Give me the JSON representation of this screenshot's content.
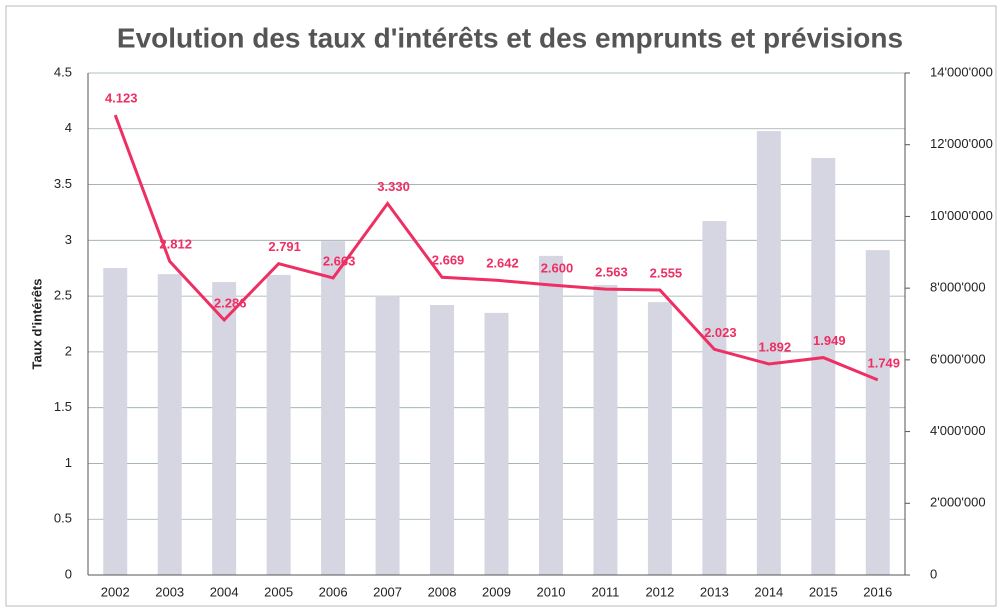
{
  "chart_data": {
    "type": "bar-line",
    "title": "Evolution des taux d'intérêts et des emprunts et prévisions",
    "y_label": "Taux d'intérêts",
    "categories": [
      "2002",
      "2003",
      "2004",
      "2005",
      "2006",
      "2007",
      "2008",
      "2009",
      "2010",
      "2011",
      "2012",
      "2013",
      "2014",
      "2015",
      "2016"
    ],
    "series": [
      {
        "type": "bar",
        "axis": "y2",
        "color": "#d6d5e2",
        "values": [
          8560000,
          8390000,
          8170000,
          8370000,
          9310000,
          7780000,
          7530000,
          7310000,
          8900000,
          8090000,
          7610000,
          9870000,
          12380000,
          11630000,
          9060000
        ]
      },
      {
        "type": "line",
        "axis": "y",
        "color": "#ee2f63",
        "values": [
          4.123,
          2.812,
          2.286,
          2.791,
          2.663,
          3.33,
          2.669,
          2.642,
          2.6,
          2.563,
          2.555,
          2.023,
          1.892,
          1.949,
          1.749
        ],
        "value_labels": [
          "4.123",
          "2.812",
          "2.286",
          "2.791",
          "2.663",
          "3.330",
          "2.669",
          "2.642",
          "2.600",
          "2.563",
          "2.555",
          "2.023",
          "1.892",
          "1.949",
          "1.749"
        ]
      }
    ],
    "ylim": [
      0,
      4.5
    ],
    "yticks": [
      0,
      0.5,
      1,
      1.5,
      2,
      2.5,
      3,
      3.5,
      4,
      4.5
    ],
    "y2lim": [
      0,
      14000000
    ],
    "y2ticks": [
      0,
      {
        "value": 2000000,
        "label": "2'000'000"
      },
      {
        "value": 4000000,
        "label": "4'000'000"
      },
      {
        "value": 6000000,
        "label": "6'000'000"
      },
      {
        "value": 8000000,
        "label": "8'000'000"
      },
      {
        "value": 10000000,
        "label": "10'000'000"
      },
      {
        "value": 12000000,
        "label": "12'000'000"
      },
      {
        "value": 14000000,
        "label": "14'000'000"
      }
    ],
    "grid": true
  }
}
